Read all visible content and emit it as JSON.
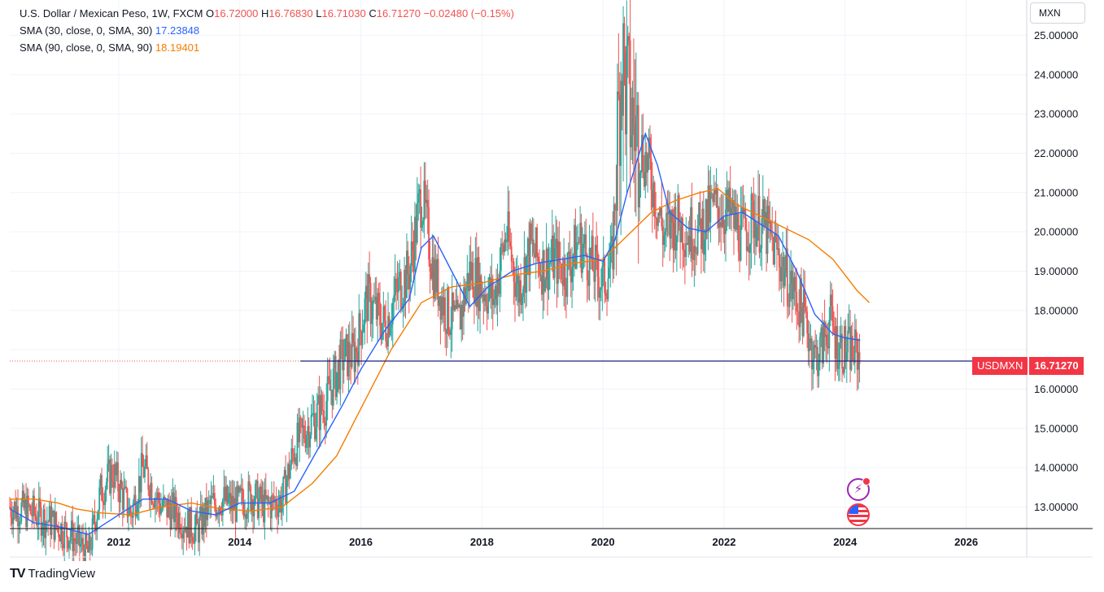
{
  "legend": {
    "symbol": "U.S. Dollar / Mexican Peso, 1W, FXCM",
    "o_label": "O",
    "o_value": "16.72000",
    "h_label": "H",
    "h_value": "16.76830",
    "l_label": "L",
    "l_value": "16.71030",
    "c_label": "C",
    "c_value": "16.71270",
    "change": "−0.02480 (−0.15%)",
    "sma30_label": "SMA (30, close, 0, SMA, 30)",
    "sma30_value": "17.23848",
    "sma90_label": "SMA (90, close, 0, SMA, 90)",
    "sma90_value": "18.19401"
  },
  "currency_button": "MXN",
  "price_badge": {
    "symbol": "USDMXN",
    "value": "16.71270"
  },
  "brand": {
    "name": "TradingView",
    "mark": "TV"
  },
  "icons": {
    "events": "lightning-icon",
    "economic": "us-flag-icon"
  },
  "colors": {
    "up": "#26a69a",
    "down": "#ef5350",
    "sma30": "#2962ff",
    "sma90": "#f57c00",
    "price_line": "#2962ff"
  },
  "chart_data": {
    "type": "candlestick",
    "x_ticks": [
      "2012",
      "2014",
      "2016",
      "2018",
      "2020",
      "2022",
      "2024",
      "2026"
    ],
    "y_ticks": [
      "13.00000",
      "14.00000",
      "15.00000",
      "16.00000",
      "17.00000",
      "18.00000",
      "19.00000",
      "20.00000",
      "21.00000",
      "22.00000",
      "23.00000",
      "24.00000",
      "25.00000"
    ],
    "ylim": [
      12.45,
      25.9
    ],
    "xlim": [
      2010.2,
      2027.0
    ],
    "last_close": 16.7127,
    "grid": true,
    "close_path": [
      [
        2010.2,
        13.0
      ],
      [
        2010.5,
        12.9
      ],
      [
        2010.9,
        12.6
      ],
      [
        2011.2,
        12.3
      ],
      [
        2011.5,
        11.8
      ],
      [
        2011.7,
        13.4
      ],
      [
        2011.9,
        13.9
      ],
      [
        2012.2,
        12.8
      ],
      [
        2012.4,
        14.0
      ],
      [
        2012.7,
        13.0
      ],
      [
        2012.9,
        12.9
      ],
      [
        2013.1,
        12.6
      ],
      [
        2013.3,
        12.4
      ],
      [
        2013.5,
        13.0
      ],
      [
        2013.7,
        13.2
      ],
      [
        2013.9,
        13.0
      ],
      [
        2014.2,
        13.3
      ],
      [
        2014.4,
        13.0
      ],
      [
        2014.7,
        13.2
      ],
      [
        2014.9,
        14.5
      ],
      [
        2015.1,
        15.0
      ],
      [
        2015.4,
        15.6
      ],
      [
        2015.7,
        16.8
      ],
      [
        2015.9,
        16.9
      ],
      [
        2016.1,
        18.3
      ],
      [
        2016.4,
        17.6
      ],
      [
        2016.6,
        18.5
      ],
      [
        2016.8,
        19.0
      ],
      [
        2017.0,
        21.0
      ],
      [
        2017.2,
        19.0
      ],
      [
        2017.4,
        18.0
      ],
      [
        2017.6,
        17.6
      ],
      [
        2017.8,
        19.0
      ],
      [
        2018.0,
        18.6
      ],
      [
        2018.2,
        18.3
      ],
      [
        2018.4,
        20.0
      ],
      [
        2018.6,
        18.5
      ],
      [
        2018.8,
        19.6
      ],
      [
        2019.0,
        19.1
      ],
      [
        2019.2,
        19.3
      ],
      [
        2019.4,
        19.0
      ],
      [
        2019.6,
        19.8
      ],
      [
        2019.8,
        19.2
      ],
      [
        2020.0,
        18.7
      ],
      [
        2020.15,
        19.2
      ],
      [
        2020.3,
        24.5
      ],
      [
        2020.45,
        23.0
      ],
      [
        2020.6,
        22.3
      ],
      [
        2020.8,
        21.4
      ],
      [
        2021.0,
        19.9
      ],
      [
        2021.2,
        20.3
      ],
      [
        2021.4,
        20.0
      ],
      [
        2021.6,
        20.0
      ],
      [
        2021.8,
        20.6
      ],
      [
        2021.95,
        20.6
      ],
      [
        2022.1,
        20.4
      ],
      [
        2022.3,
        19.9
      ],
      [
        2022.5,
        20.4
      ],
      [
        2022.7,
        20.0
      ],
      [
        2022.9,
        19.4
      ],
      [
        2023.1,
        18.6
      ],
      [
        2023.3,
        18.0
      ],
      [
        2023.5,
        16.8
      ],
      [
        2023.6,
        17.0
      ],
      [
        2023.75,
        17.8
      ],
      [
        2023.85,
        17.2
      ],
      [
        2024.0,
        17.0
      ],
      [
        2024.2,
        16.9
      ],
      [
        2024.25,
        16.71
      ]
    ],
    "sma30_path": [
      [
        2010.2,
        12.95
      ],
      [
        2010.6,
        12.6
      ],
      [
        2011.0,
        12.5
      ],
      [
        2011.5,
        12.3
      ],
      [
        2011.9,
        12.7
      ],
      [
        2012.4,
        13.2
      ],
      [
        2012.8,
        13.2
      ],
      [
        2013.2,
        12.9
      ],
      [
        2013.6,
        12.8
      ],
      [
        2014.0,
        13.1
      ],
      [
        2014.5,
        13.1
      ],
      [
        2014.9,
        13.4
      ],
      [
        2015.3,
        14.5
      ],
      [
        2015.7,
        15.6
      ],
      [
        2016.0,
        16.5
      ],
      [
        2016.4,
        17.5
      ],
      [
        2016.8,
        18.3
      ],
      [
        2017.0,
        19.6
      ],
      [
        2017.2,
        19.9
      ],
      [
        2017.5,
        19.0
      ],
      [
        2017.8,
        18.1
      ],
      [
        2018.1,
        18.6
      ],
      [
        2018.5,
        19.0
      ],
      [
        2018.9,
        19.2
      ],
      [
        2019.3,
        19.3
      ],
      [
        2019.7,
        19.4
      ],
      [
        2020.0,
        19.25
      ],
      [
        2020.2,
        19.8
      ],
      [
        2020.4,
        21.0
      ],
      [
        2020.7,
        22.5
      ],
      [
        2020.9,
        21.7
      ],
      [
        2021.1,
        20.5
      ],
      [
        2021.4,
        20.1
      ],
      [
        2021.7,
        20.0
      ],
      [
        2022.0,
        20.4
      ],
      [
        2022.3,
        20.5
      ],
      [
        2022.6,
        20.2
      ],
      [
        2022.9,
        19.9
      ],
      [
        2023.2,
        19.0
      ],
      [
        2023.5,
        17.9
      ],
      [
        2023.8,
        17.4
      ],
      [
        2024.0,
        17.3
      ],
      [
        2024.25,
        17.24
      ]
    ],
    "sma90_path": [
      [
        2010.2,
        13.2
      ],
      [
        2010.6,
        13.2
      ],
      [
        2011.0,
        13.1
      ],
      [
        2011.3,
        12.95
      ],
      [
        2011.7,
        12.85
      ],
      [
        2012.2,
        12.8
      ],
      [
        2012.7,
        13.0
      ],
      [
        2013.2,
        13.1
      ],
      [
        2013.7,
        12.95
      ],
      [
        2014.2,
        12.9
      ],
      [
        2014.7,
        13.0
      ],
      [
        2015.2,
        13.6
      ],
      [
        2015.6,
        14.3
      ],
      [
        2016.0,
        15.5
      ],
      [
        2016.5,
        17.0
      ],
      [
        2017.0,
        18.2
      ],
      [
        2017.5,
        18.6
      ],
      [
        2018.0,
        18.7
      ],
      [
        2018.5,
        18.9
      ],
      [
        2019.0,
        19.0
      ],
      [
        2019.5,
        19.2
      ],
      [
        2020.0,
        19.3
      ],
      [
        2020.4,
        19.9
      ],
      [
        2020.8,
        20.5
      ],
      [
        2021.2,
        20.8
      ],
      [
        2021.6,
        21.0
      ],
      [
        2021.9,
        21.1
      ],
      [
        2022.2,
        20.7
      ],
      [
        2022.6,
        20.4
      ],
      [
        2023.0,
        20.1
      ],
      [
        2023.4,
        19.8
      ],
      [
        2023.8,
        19.3
      ],
      [
        2024.2,
        18.5
      ],
      [
        2024.4,
        18.2
      ]
    ]
  }
}
